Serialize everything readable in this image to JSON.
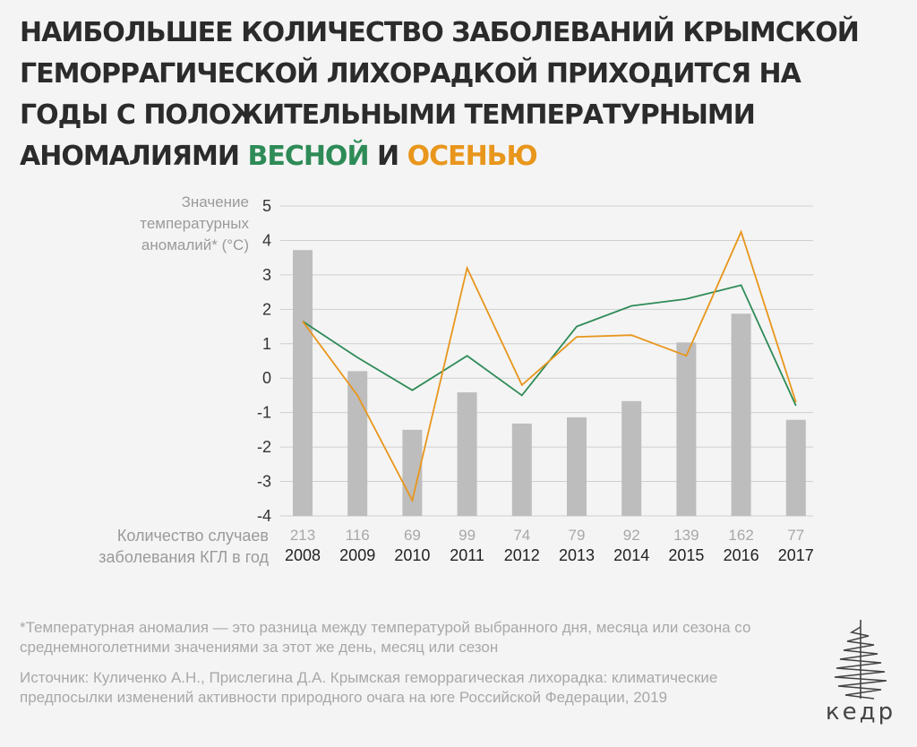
{
  "title": {
    "part1": "Наибольшее количество заболеваний Крымской геморрагической лихорадкой приходится на годы с положительными температурными аномалиями",
    "spring": "весной",
    "conj": "и",
    "autumn": "осенью"
  },
  "y_axis_label": "Значение температурных аномалий* (°С)",
  "cases_row_label": "Количество случаев заболевания КГЛ в год",
  "footnote": "*Температурная аномалия — это разница между температурой выбранного дня, месяца или сезона со среднемноголетними значениями за этот же день, месяц или сезон",
  "source": "Источник: Куличенко А.Н., Прислегина Д.А. Крымская геморрагическая лихорадка: климатические предпосылки изменений активности природного очага на юге Российской Федерации, 2019",
  "logo_text": "кедр",
  "colors": {
    "spring": "#2e8b57",
    "autumn": "#e8961c",
    "bars": "#bdbdbd",
    "grid": "#cfcfcf"
  },
  "chart_data": {
    "type": "bar",
    "categories": [
      "2008",
      "2009",
      "2010",
      "2011",
      "2012",
      "2013",
      "2014",
      "2015",
      "2016",
      "2017"
    ],
    "y_ticks": [
      "5",
      "4",
      "3",
      "2",
      "1",
      "0",
      "-1",
      "-2",
      "-3",
      "-4"
    ],
    "ylim": [
      -4,
      5
    ],
    "grid": true,
    "series": [
      {
        "name": "Количество случаев заболевания КГЛ в год",
        "kind": "bar",
        "values": [
          213,
          116,
          69,
          99,
          74,
          79,
          92,
          139,
          162,
          77
        ]
      },
      {
        "name": "весной",
        "kind": "line",
        "values": [
          1.65,
          0.6,
          -0.35,
          0.65,
          -0.5,
          1.5,
          2.1,
          2.3,
          2.7,
          -0.8
        ]
      },
      {
        "name": "осенью",
        "kind": "line",
        "values": [
          1.65,
          -0.5,
          -3.55,
          3.2,
          -0.2,
          1.2,
          1.25,
          0.65,
          4.25,
          -0.7
        ]
      }
    ]
  }
}
